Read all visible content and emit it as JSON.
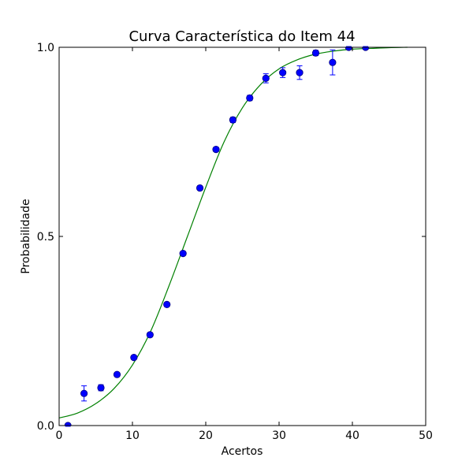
{
  "chart_data": {
    "type": "scatter",
    "title": "Curva Característica do Item 44",
    "xlabel": "Acertos",
    "ylabel": "Probabilidade",
    "xlim": [
      0,
      50
    ],
    "ylim": [
      0.0,
      1.0
    ],
    "x_ticks": [
      0,
      10,
      20,
      30,
      40,
      50
    ],
    "x_tick_labels": [
      "0",
      "10",
      "20",
      "30",
      "40",
      "50"
    ],
    "y_ticks": [
      0.0,
      0.5,
      1.0
    ],
    "y_tick_labels": [
      "0.0",
      "0.5",
      "1.0"
    ],
    "grid": false,
    "colors": {
      "points": "#0000ff",
      "points_edge": "#000080",
      "error_bars": "#0000ff",
      "curve": "#008000"
    },
    "series": [
      {
        "kind": "points_with_error_bars",
        "x": [
          1.2,
          3.4,
          5.7,
          7.9,
          10.2,
          12.4,
          14.7,
          16.9,
          19.2,
          21.4,
          23.7,
          26.0,
          28.2,
          30.5,
          32.8,
          35.0,
          37.3,
          39.5,
          41.8
        ],
        "y": [
          0.0,
          0.085,
          0.1,
          0.135,
          0.18,
          0.24,
          0.32,
          0.455,
          0.628,
          0.73,
          0.808,
          0.866,
          0.918,
          0.933,
          0.933,
          0.985,
          0.96,
          1.0,
          1.0
        ],
        "y_err": [
          0.002,
          0.02,
          0.008,
          0.005,
          0.005,
          0.005,
          0.005,
          0.005,
          0.005,
          0.006,
          0.007,
          0.007,
          0.012,
          0.013,
          0.018,
          0.007,
          0.033,
          0.002,
          0.002
        ]
      },
      {
        "kind": "fitted_curve",
        "x": [
          0,
          2.5,
          5,
          7.5,
          10,
          12.5,
          15,
          17.5,
          20,
          22.5,
          25,
          27.5,
          30,
          32.5,
          35,
          37.5,
          40,
          42.5,
          45,
          47.5
        ],
        "y": [
          0.02,
          0.033,
          0.058,
          0.098,
          0.16,
          0.25,
          0.37,
          0.5,
          0.63,
          0.75,
          0.84,
          0.902,
          0.943,
          0.967,
          0.982,
          0.99,
          0.995,
          0.997,
          0.999,
          1.0
        ]
      }
    ]
  }
}
